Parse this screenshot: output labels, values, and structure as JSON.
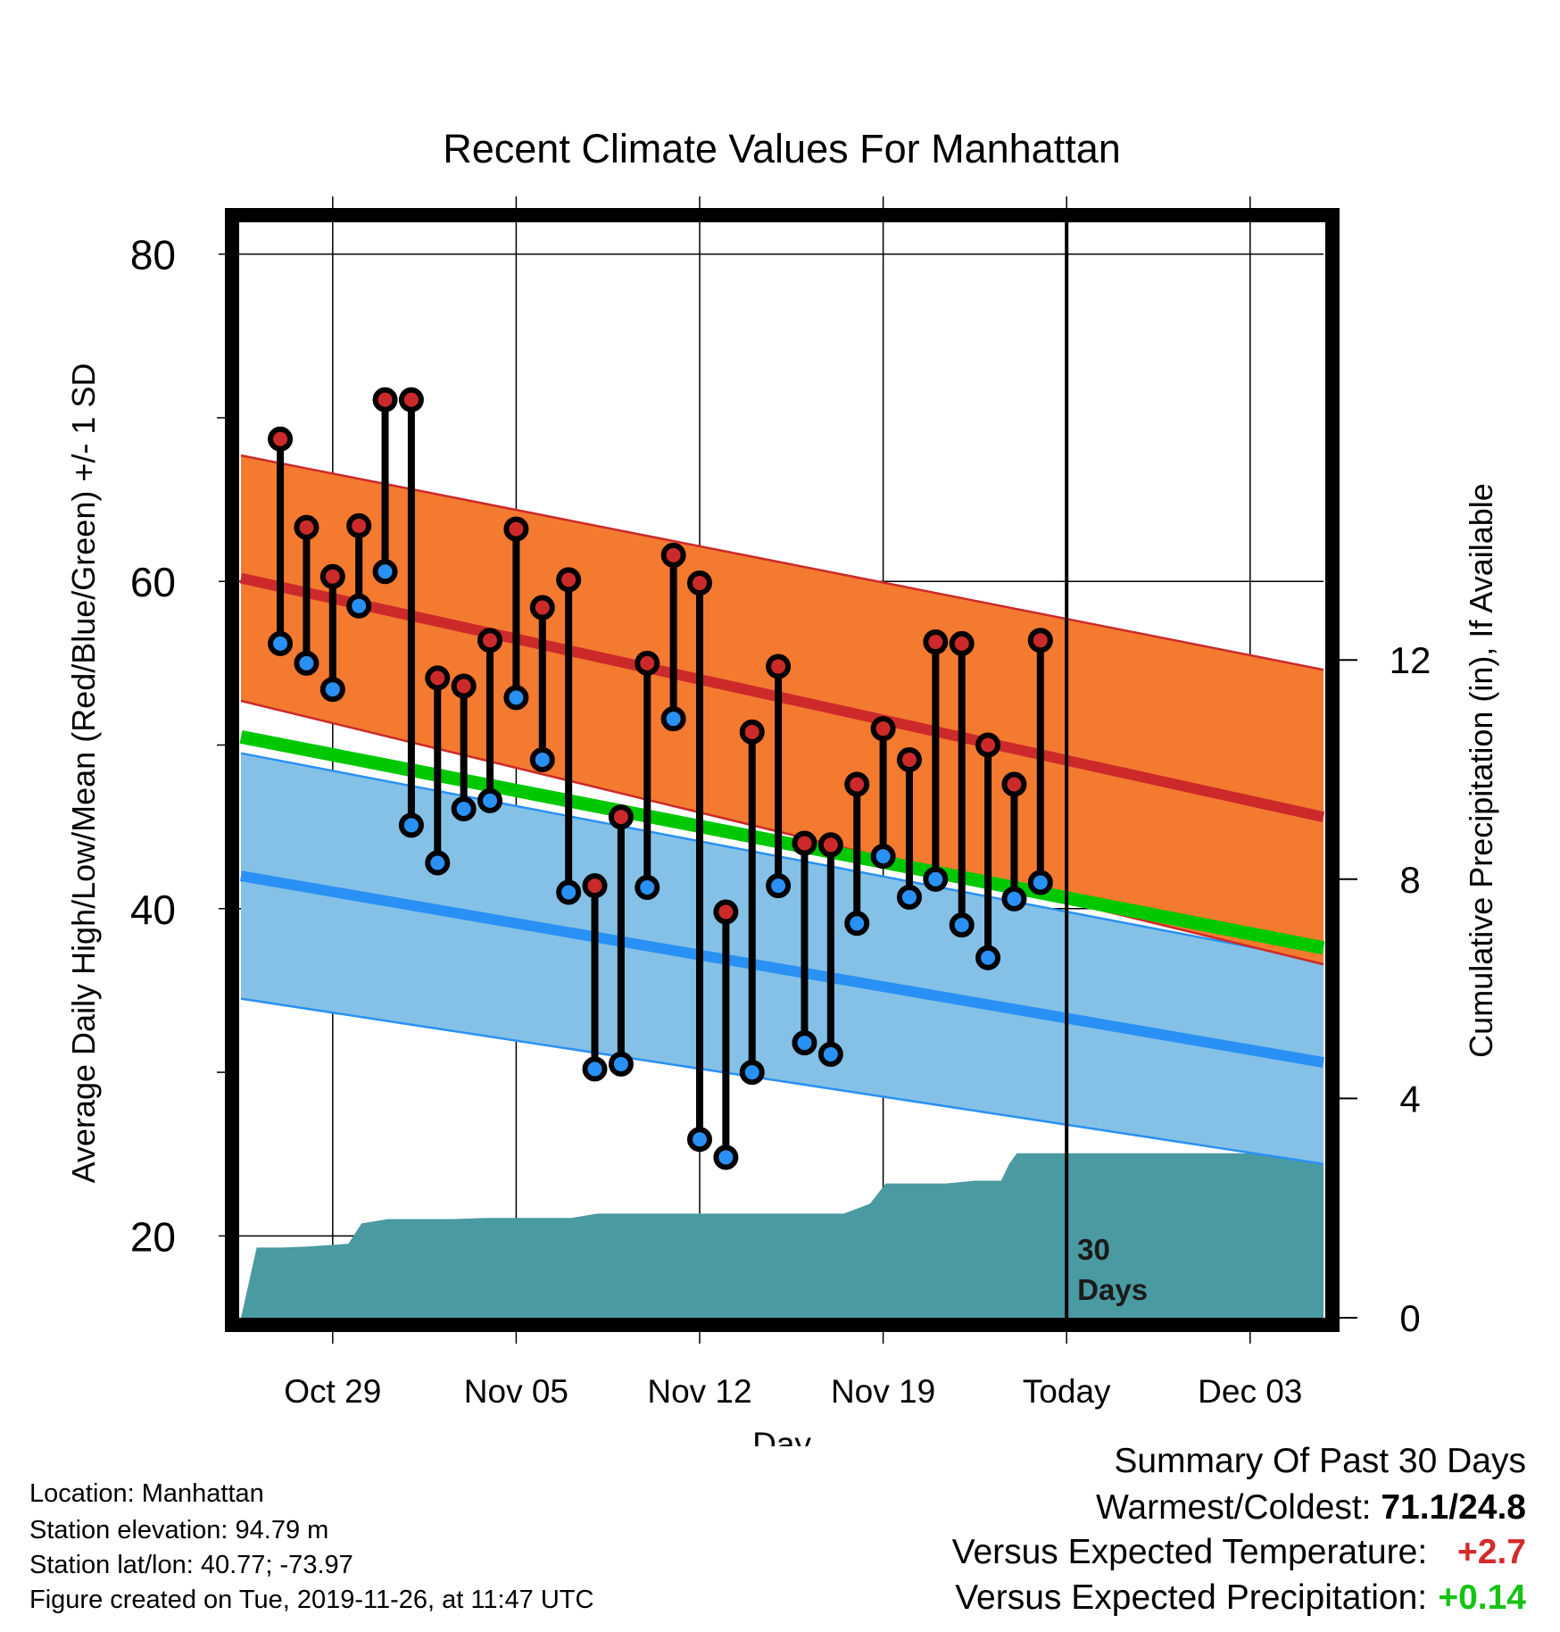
{
  "colors": {
    "high_band": "#f47a30",
    "high_line": "#cc2a2a",
    "low_band": "#85c1e6",
    "low_line": "#2991f5",
    "mean_line": "#00c800",
    "precip_fill": "#4a9aa1",
    "high_dot": "#cc2a2a",
    "low_dot": "#2991f5",
    "warm_text": "#d42a2a",
    "precip_text": "#14c414"
  },
  "chart_data": {
    "type": "line",
    "title": "Recent Climate Values For Manhattan",
    "xlabel": "Day",
    "ylabel": "Average Daily High/Low/Mean (Red/Blue/Green) +/- 1 SD",
    "y2label": "Cumulative Precipitation (in), If Available",
    "x_domain_day_offsets": [
      -3.5,
      37.8
    ],
    "x_ticks": [
      {
        "day": 0,
        "label": "Oct 29"
      },
      {
        "day": 7,
        "label": "Nov 05"
      },
      {
        "day": 14,
        "label": "Nov 12"
      },
      {
        "day": 21,
        "label": "Nov 19"
      },
      {
        "day": 28,
        "label": "Today"
      },
      {
        "day": 35,
        "label": "Dec 03"
      }
    ],
    "ylim": [
      15,
      82
    ],
    "y_ticks": [
      20,
      40,
      60,
      80
    ],
    "y_minor_ticks": [
      30,
      50,
      70
    ],
    "y2lim": [
      0,
      20
    ],
    "y2_ticks": [
      0,
      4,
      8,
      12
    ],
    "today_marker": {
      "day": 28,
      "label": "30\nDays"
    },
    "normal_high": {
      "day": [
        -3.5,
        37.8
      ],
      "mean": [
        60.2,
        45.6
      ],
      "sd": [
        7.5,
        9.0
      ]
    },
    "normal_low": {
      "day": [
        -3.5,
        37.8
      ],
      "mean": [
        42.0,
        30.6
      ],
      "sd": [
        7.5,
        6.2
      ]
    },
    "normal_mean": {
      "day": [
        -3.5,
        37.8
      ],
      "value": [
        50.5,
        37.6
      ]
    },
    "daily": {
      "day": [
        -2,
        -1,
        0,
        1,
        2,
        3,
        4,
        5,
        6,
        7,
        8,
        9,
        10,
        11,
        12,
        13,
        14,
        15,
        16,
        17,
        18,
        19,
        20,
        21,
        22,
        23,
        24,
        25,
        26,
        27
      ],
      "high": [
        68.7,
        63.3,
        60.3,
        63.4,
        71.1,
        71.1,
        54.1,
        53.6,
        56.4,
        63.2,
        58.4,
        60.1,
        41.4,
        45.6,
        55.0,
        61.6,
        59.9,
        39.8,
        50.8,
        54.8,
        44.0,
        43.9,
        47.6,
        51.0,
        49.1,
        56.3,
        56.2,
        50.0,
        47.6,
        56.4
      ],
      "low": [
        56.2,
        55.0,
        53.4,
        58.5,
        60.6,
        45.1,
        42.8,
        46.1,
        46.6,
        52.9,
        49.1,
        41.0,
        30.2,
        30.5,
        41.3,
        51.6,
        25.9,
        24.8,
        30.0,
        41.4,
        31.8,
        31.1,
        39.1,
        43.2,
        40.7,
        41.8,
        39.0,
        37.0,
        40.6,
        41.6
      ]
    },
    "precip_cumulative": {
      "day": [
        -3.5,
        -2.9,
        -1.9,
        -0.9,
        0.6,
        1.1,
        2.1,
        4.6,
        5.8,
        7.6,
        9.1,
        10.1,
        17.2,
        19.5,
        20.5,
        21.1,
        22.3,
        23.4,
        24.5,
        25.5,
        25.8,
        26.1,
        30.0,
        37.8
      ],
      "value": [
        0.0,
        1.28,
        1.28,
        1.3,
        1.35,
        1.72,
        1.8,
        1.8,
        1.82,
        1.82,
        1.82,
        1.9,
        1.9,
        1.9,
        2.08,
        2.45,
        2.45,
        2.45,
        2.5,
        2.5,
        2.8,
        3.0,
        3.0,
        3.0
      ]
    }
  },
  "info": {
    "location": "Location: Manhattan",
    "elevation": "Station elevation: 94.79 m",
    "latlon": "Station lat/lon: 40.77; -73.97",
    "created": "Figure created on Tue, 2019-11-26, at 11:47 UTC"
  },
  "summary": {
    "heading": "Summary Of Past 30 Days",
    "warm_cold_label": "Warmest/Coldest:",
    "warm_cold_value": "71.1/24.8",
    "temp_label": "Versus Expected Temperature:",
    "temp_value": "+2.7",
    "precip_label": "Versus Expected Precipitation:",
    "precip_value": "+0.14"
  }
}
